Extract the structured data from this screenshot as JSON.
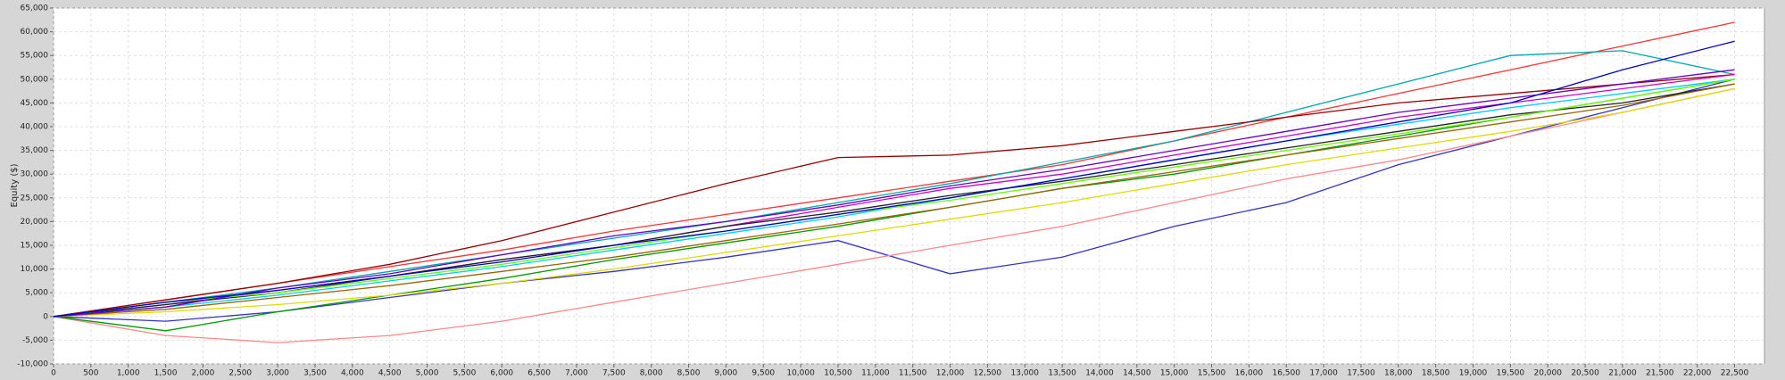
{
  "chart_data": {
    "type": "line",
    "y_label": "Equity ($)",
    "grid": true,
    "xlim": [
      0,
      22900
    ],
    "ylim": [
      -10000,
      65000
    ],
    "yticks": [
      {
        "value": -10000,
        "label": "-10,000"
      },
      {
        "value": -5000,
        "label": "-5,000"
      },
      0,
      {
        "value": 5000,
        "label": "5,000"
      },
      {
        "value": 10000,
        "label": "10,000"
      },
      {
        "value": 15000,
        "label": "15,000"
      },
      {
        "value": 20000,
        "label": "20,000"
      },
      {
        "value": 25000,
        "label": "25,000"
      },
      {
        "value": 30000,
        "label": "30,000"
      },
      {
        "value": 35000,
        "label": "35,000"
      },
      {
        "value": 40000,
        "label": "40,000"
      },
      {
        "value": 45000,
        "label": "45,000"
      },
      {
        "value": 50000,
        "label": "50,000"
      },
      {
        "value": 55000,
        "label": "55,000"
      },
      {
        "value": 60000,
        "label": "60,000"
      },
      {
        "value": 65000,
        "label": "65,000"
      }
    ],
    "xticks": [
      0,
      500,
      {
        "value": 1000,
        "label": "1,000"
      },
      {
        "value": 1500,
        "label": "1,500"
      },
      {
        "value": 2000,
        "label": "2,000"
      },
      {
        "value": 2500,
        "label": "2,500"
      },
      {
        "value": 3000,
        "label": "3,000"
      },
      {
        "value": 3500,
        "label": "3,500"
      },
      {
        "value": 4000,
        "label": "4,000"
      },
      {
        "value": 4500,
        "label": "4,500"
      },
      {
        "value": 5000,
        "label": "5,000"
      },
      {
        "value": 5500,
        "label": "5,500"
      },
      {
        "value": 6000,
        "label": "6,000"
      },
      {
        "value": 6500,
        "label": "6,500"
      },
      {
        "value": 7000,
        "label": "7,000"
      },
      {
        "value": 7500,
        "label": "7,500"
      },
      {
        "value": 8000,
        "label": "8,000"
      },
      {
        "value": 8500,
        "label": "8,500"
      },
      {
        "value": 9000,
        "label": "9,000"
      },
      {
        "value": 9500,
        "label": "9,500"
      },
      {
        "value": 10000,
        "label": "10,000"
      },
      {
        "value": 10500,
        "label": "10,500"
      },
      {
        "value": 11000,
        "label": "11,000"
      },
      {
        "value": 11500,
        "label": "11,500"
      },
      {
        "value": 12000,
        "label": "12,000"
      },
      {
        "value": 12500,
        "label": "12,500"
      },
      {
        "value": 13000,
        "label": "13,000"
      },
      {
        "value": 13500,
        "label": "13,500"
      },
      {
        "value": 14000,
        "label": "14,000"
      },
      {
        "value": 14500,
        "label": "14,500"
      },
      {
        "value": 15000,
        "label": "15,000"
      },
      {
        "value": 15500,
        "label": "15,500"
      },
      {
        "value": 16000,
        "label": "16,000"
      },
      {
        "value": 16500,
        "label": "16,500"
      },
      {
        "value": 17000,
        "label": "17,000"
      },
      {
        "value": 17500,
        "label": "17,500"
      },
      {
        "value": 18000,
        "label": "18,000"
      },
      {
        "value": 18500,
        "label": "18,500"
      },
      {
        "value": 19000,
        "label": "19,000"
      },
      {
        "value": 19500,
        "label": "19,500"
      },
      {
        "value": 20000,
        "label": "20,000"
      },
      {
        "value": 20500,
        "label": "20,500"
      },
      {
        "value": 21000,
        "label": "21,000"
      },
      {
        "value": 21500,
        "label": "21,500"
      },
      {
        "value": 22000,
        "label": "22,000"
      },
      {
        "value": 22500,
        "label": "22,500"
      }
    ],
    "x": [
      0,
      1500,
      3000,
      4500,
      6000,
      7500,
      9000,
      10500,
      12000,
      13500,
      15000,
      16500,
      18000,
      19500,
      21000,
      22500
    ],
    "series": [
      {
        "color": "#ff3333",
        "values": [
          0,
          3500,
          7000,
          10500,
          14000,
          18000,
          21500,
          25000,
          28500,
          32000,
          37000,
          42000,
          47000,
          52000,
          57000,
          62000
        ]
      },
      {
        "color": "#00aaaa",
        "values": [
          0,
          3000,
          6000,
          9500,
          13000,
          16500,
          20000,
          24000,
          28000,
          32500,
          37000,
          43000,
          49000,
          55000,
          56000,
          51000
        ]
      },
      {
        "color": "#990000",
        "values": [
          0,
          3500,
          7000,
          11000,
          16000,
          22000,
          28000,
          33500,
          34000,
          36000,
          39000,
          42000,
          45000,
          47000,
          49000,
          51000
        ]
      },
      {
        "color": "#3333cc",
        "values": [
          0,
          -1000,
          1000,
          4000,
          7000,
          9500,
          12500,
          16000,
          9000,
          12500,
          19000,
          24000,
          32000,
          38000,
          44000,
          50000
        ]
      },
      {
        "color": "#ff8888",
        "values": [
          0,
          -4000,
          -5500,
          -4000,
          -1000,
          3000,
          7000,
          11000,
          15000,
          19000,
          24000,
          29000,
          33000,
          38000,
          43000,
          48000
        ]
      },
      {
        "color": "#009900",
        "values": [
          0,
          -3000,
          1000,
          4500,
          8000,
          12000,
          15500,
          19000,
          23000,
          27000,
          30000,
          34000,
          38000,
          42000,
          46000,
          50000
        ]
      },
      {
        "color": "#cc00cc",
        "values": [
          0,
          2500,
          5500,
          8500,
          12000,
          15000,
          19000,
          23000,
          27000,
          30000,
          34000,
          38000,
          42000,
          45000,
          48000,
          51000
        ]
      },
      {
        "color": "#dddd00",
        "values": [
          0,
          1000,
          2500,
          4500,
          7000,
          10000,
          13500,
          17000,
          20500,
          24000,
          28000,
          32000,
          35500,
          39000,
          43000,
          48000
        ]
      },
      {
        "color": "#222222",
        "values": [
          0,
          2500,
          5000,
          8500,
          12000,
          15000,
          19000,
          22000,
          25500,
          28500,
          32000,
          35500,
          39000,
          42500,
          45000,
          49000
        ]
      },
      {
        "color": "#00ccff",
        "values": [
          0,
          2000,
          4500,
          7500,
          10500,
          14000,
          17500,
          21000,
          25000,
          29000,
          33000,
          37000,
          40500,
          44000,
          47000,
          50000
        ]
      },
      {
        "color": "#996600",
        "values": [
          0,
          1500,
          4000,
          6500,
          9500,
          12500,
          16000,
          19500,
          23000,
          27000,
          30500,
          34000,
          37500,
          41000,
          44500,
          49000
        ]
      },
      {
        "color": "#66ff00",
        "values": [
          0,
          3000,
          5000,
          8000,
          11000,
          14500,
          18000,
          21500,
          24500,
          28000,
          31500,
          35000,
          38500,
          42000,
          46000,
          50000
        ]
      },
      {
        "color": "#6600cc",
        "values": [
          0,
          2000,
          6000,
          9000,
          13000,
          17000,
          20000,
          23500,
          27500,
          31000,
          35000,
          39000,
          43000,
          46000,
          49000,
          52000
        ]
      },
      {
        "color": "#0000cc",
        "values": [
          0,
          3000,
          5500,
          8500,
          11500,
          15000,
          18000,
          21500,
          25000,
          29000,
          33000,
          37000,
          41000,
          45000,
          52000,
          58000
        ]
      }
    ]
  }
}
